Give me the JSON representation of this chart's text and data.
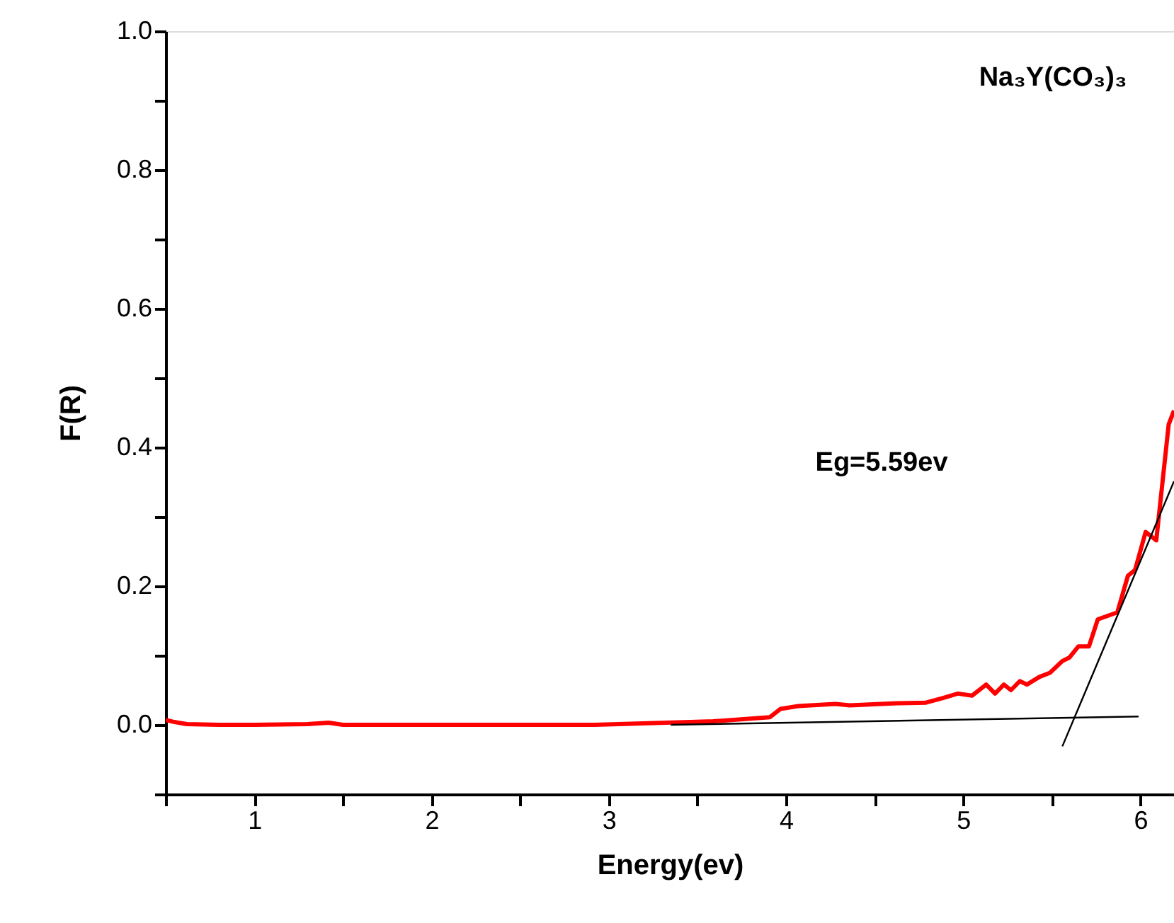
{
  "chart_data": {
    "type": "line",
    "xlabel": "Energy(ev)",
    "ylabel": "F(R)",
    "annotations": [
      "Na₃Y(CO₃)₃",
      "Eg=5.59ev"
    ],
    "xlim": [
      0.5,
      6.19
    ],
    "ylim": [
      -0.1,
      1.0
    ],
    "xticks": [
      {
        "value": 0.5,
        "label": null
      },
      1,
      {
        "value": 1.5,
        "label": null
      },
      2,
      {
        "value": 2.5,
        "label": null
      },
      3,
      {
        "value": 3.5,
        "label": null
      },
      4,
      {
        "value": 4.5,
        "label": null
      },
      5,
      {
        "value": 5.5,
        "label": null
      },
      6
    ],
    "yticks": [
      {
        "value": -0.1,
        "label": null
      },
      {
        "value": 0,
        "label": "0.0"
      },
      {
        "value": 0.1,
        "label": null
      },
      {
        "value": 0.2,
        "label": "0.2"
      },
      {
        "value": 0.3,
        "label": null
      },
      {
        "value": 0.4,
        "label": "0.4"
      },
      {
        "value": 0.5,
        "label": null
      },
      {
        "value": 0.6,
        "label": "0.6"
      },
      {
        "value": 0.7,
        "label": null
      },
      {
        "value": 0.8,
        "label": "0.8"
      },
      {
        "value": 0.9,
        "label": null
      },
      {
        "value": 1.0,
        "label": "1.0"
      }
    ],
    "grid": false,
    "marker": "none",
    "line_style": "solid",
    "series": [
      {
        "color": "#ff0000",
        "x": [
          0.5,
          0.55,
          0.62,
          0.8,
          1.0,
          1.3,
          1.42,
          1.5,
          2.0,
          2.5,
          2.92,
          3.19,
          3.59,
          3.91,
          3.97,
          4.07,
          4.28,
          4.36,
          4.63,
          4.79,
          4.89,
          4.97,
          5.05,
          5.13,
          5.18,
          5.23,
          5.27,
          5.32,
          5.36,
          5.43,
          5.49,
          5.56,
          5.6,
          5.65,
          5.71,
          5.76,
          5.87,
          5.93,
          5.97,
          6.03,
          6.09,
          6.16,
          6.19
        ],
        "values": [
          0.007,
          0.004,
          0.001,
          0.0,
          0.0,
          0.001,
          0.003,
          0.0,
          0.0,
          0.0,
          0.0,
          0.002,
          0.005,
          0.011,
          0.023,
          0.027,
          0.03,
          0.028,
          0.031,
          0.032,
          0.039,
          0.045,
          0.042,
          0.058,
          0.045,
          0.058,
          0.05,
          0.063,
          0.058,
          0.069,
          0.075,
          0.092,
          0.097,
          0.113,
          0.113,
          0.152,
          0.162,
          0.215,
          0.223,
          0.278,
          0.266,
          0.433,
          0.453
        ]
      },
      {
        "type": "line",
        "color": "#000000",
        "x": [
          3.35,
          5.99
        ],
        "values": [
          0.0,
          0.012
        ]
      },
      {
        "type": "line",
        "color": "#000000",
        "x": [
          5.56,
          6.19
        ],
        "values": [
          -0.031,
          0.351
        ]
      }
    ]
  }
}
